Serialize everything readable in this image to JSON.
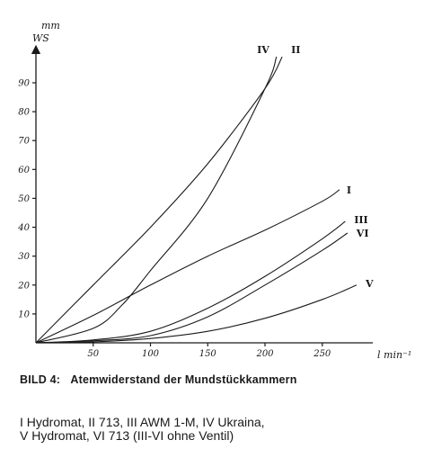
{
  "chart_data": {
    "type": "line",
    "ylabel_line1": "mm",
    "ylabel_line2": "WS",
    "xlabel": "l min⁻¹",
    "xlim": [
      0,
      290
    ],
    "ylim": [
      0,
      100
    ],
    "xticks": [
      50,
      100,
      150,
      200,
      250
    ],
    "yticks": [
      10,
      20,
      30,
      40,
      50,
      60,
      70,
      80,
      90
    ],
    "grid": false,
    "series": [
      {
        "name": "I",
        "x": [
          0,
          50,
          100,
          150,
          200,
          250,
          265
        ],
        "y": [
          0,
          9.5,
          20,
          30,
          39,
          49,
          53
        ]
      },
      {
        "name": "II",
        "x": [
          0,
          50,
          100,
          150,
          200,
          215
        ],
        "y": [
          0,
          20,
          40,
          62,
          88,
          99
        ]
      },
      {
        "name": "III",
        "x": [
          0,
          50,
          100,
          150,
          200,
          250,
          270
        ],
        "y": [
          0,
          1,
          4,
          12,
          23,
          36,
          42
        ]
      },
      {
        "name": "IV",
        "x": [
          0,
          50,
          75,
          100,
          150,
          200,
          210
        ],
        "y": [
          0,
          5,
          13,
          25,
          50,
          88,
          99
        ]
      },
      {
        "name": "V",
        "x": [
          0,
          50,
          100,
          150,
          200,
          250,
          280
        ],
        "y": [
          0,
          0.3,
          1.5,
          4,
          8.5,
          15,
          20
        ]
      },
      {
        "name": "VI",
        "x": [
          0,
          50,
          100,
          150,
          200,
          250,
          272
        ],
        "y": [
          0,
          0.7,
          2.5,
          9,
          20,
          32,
          38
        ]
      }
    ]
  },
  "caption": {
    "figure_label": "BILD 4:",
    "text": "Atemwiderstand der Mundstückkammern"
  },
  "legend_text": "I Hydromat, II 713, III AWM 1-M, IV Ukraina,\nV Hydromat, VI 713 (III-VI ohne Ventil)"
}
